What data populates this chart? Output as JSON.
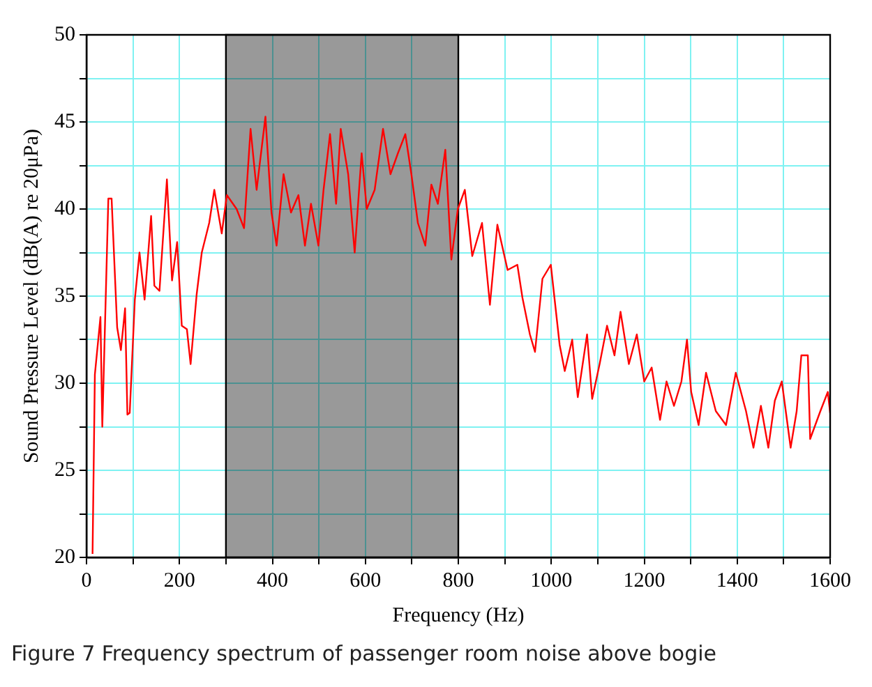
{
  "chart_data": {
    "type": "line",
    "xlabel": "Frequency (Hz)",
    "ylabel": "Sound Pressure Level (dB(A) re 20μPa)",
    "annotations": [
      "Figure 7  Frequency spectrum of passenger room noise above bogie"
    ],
    "xlim": [
      0,
      1600
    ],
    "ylim": [
      20,
      50
    ],
    "xticks": [
      0,
      {
        "value": 100,
        "label": null
      },
      200,
      {
        "value": 300,
        "label": null
      },
      400,
      {
        "value": 500,
        "label": null
      },
      600,
      {
        "value": 700,
        "label": null
      },
      800,
      {
        "value": 900,
        "label": null
      },
      1000,
      {
        "value": 1100,
        "label": null
      },
      1200,
      {
        "value": 1300,
        "label": null
      },
      1400,
      {
        "value": 1500,
        "label": null
      },
      1600
    ],
    "yticks": [
      20,
      {
        "value": 22.5,
        "label": null
      },
      25,
      {
        "value": 27.5,
        "label": null
      },
      30,
      {
        "value": 32.5,
        "label": null
      },
      35,
      {
        "value": 37.5,
        "label": null
      },
      40,
      {
        "value": 42.5,
        "label": null
      },
      45,
      {
        "value": 47.5,
        "label": null
      },
      50
    ],
    "grid": true,
    "legend": false,
    "marker": "none",
    "line_style": "solid",
    "bands": [
      {
        "axis": "x",
        "from": 300,
        "to": 800,
        "label": null,
        "color": "#000000"
      }
    ],
    "series": [
      {
        "color": "#ff0000",
        "x": [
          13,
          18,
          30,
          34,
          47,
          54,
          66,
          74,
          83,
          88,
          93,
          104,
          114,
          125,
          139,
          146,
          157,
          173,
          184,
          195,
          205,
          216,
          224,
          237,
          248,
          264,
          275,
          291,
          302,
          323,
          339,
          353,
          366,
          385,
          398,
          409,
          424,
          440,
          456,
          470,
          483,
          499,
          510,
          524,
          537,
          547,
          563,
          577,
          592,
          603,
          620,
          638,
          654,
          670,
          686,
          699,
          713,
          729,
          742,
          756,
          772,
          785,
          799,
          814,
          830,
          851,
          868,
          884,
          906,
          927,
          938,
          954,
          965,
          981,
          999,
          1018,
          1029,
          1045,
          1057,
          1077,
          1088,
          1104,
          1120,
          1136,
          1149,
          1167,
          1184,
          1200,
          1216,
          1234,
          1248,
          1264,
          1280,
          1292,
          1301,
          1317,
          1333,
          1354,
          1376,
          1397,
          1419,
          1435,
          1451,
          1467,
          1481,
          1496,
          1515,
          1528,
          1538,
          1552,
          1557,
          1579,
          1595,
          1600
        ],
        "values": [
          20.2,
          30.5,
          33.8,
          27.5,
          40.6,
          40.6,
          33.2,
          31.9,
          34.3,
          28.2,
          28.3,
          34.8,
          37.5,
          34.8,
          39.6,
          35.6,
          35.3,
          41.7,
          35.9,
          38.1,
          33.3,
          33.1,
          31.1,
          35.1,
          37.5,
          39.2,
          41.1,
          38.6,
          40.8,
          40.0,
          38.9,
          44.6,
          41.1,
          45.3,
          39.8,
          37.9,
          42.0,
          39.8,
          40.8,
          37.9,
          40.3,
          37.9,
          41.1,
          44.3,
          40.3,
          44.6,
          42.0,
          37.5,
          43.2,
          40.0,
          41.1,
          44.6,
          42.0,
          43.2,
          44.3,
          42.0,
          39.2,
          37.9,
          41.4,
          40.3,
          43.4,
          37.1,
          40.0,
          41.1,
          37.3,
          39.2,
          34.5,
          39.1,
          36.5,
          36.8,
          34.9,
          32.8,
          31.8,
          36.0,
          36.8,
          32.2,
          30.7,
          32.5,
          29.2,
          32.8,
          29.1,
          31.1,
          33.3,
          31.6,
          34.1,
          31.1,
          32.8,
          30.1,
          30.9,
          27.9,
          30.1,
          28.7,
          30.1,
          32.5,
          29.5,
          27.6,
          30.6,
          28.4,
          27.6,
          30.6,
          28.4,
          26.3,
          28.7,
          26.3,
          29.0,
          30.1,
          26.3,
          28.4,
          31.6,
          31.6,
          26.8,
          28.4,
          29.5,
          28.3
        ]
      }
    ]
  }
}
